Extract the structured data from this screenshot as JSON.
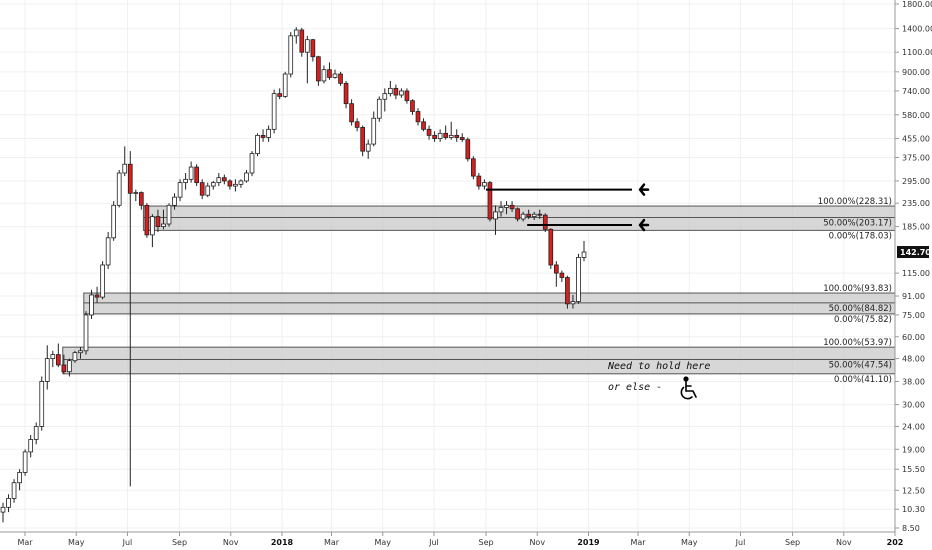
{
  "chart_data": {
    "type": "candlestick",
    "scale": "log",
    "ylim": [
      8.5,
      1800
    ],
    "y_ticks": [
      "1800.00",
      "1400.00",
      "1100.00",
      "900.00",
      "740.00",
      "580.00",
      "455.00",
      "375.00",
      "295.00",
      "235.00",
      "185.00",
      "142.70",
      "115.00",
      "91.00",
      "75.00",
      "60.00",
      "48.00",
      "38.00",
      "30.00",
      "24.00",
      "19.00",
      "15.50",
      "12.50",
      "10.30",
      "8.50"
    ],
    "current_price": "142.70",
    "x_ticks": [
      {
        "label": "Mar",
        "bold": false
      },
      {
        "label": "May",
        "bold": false
      },
      {
        "label": "Jul",
        "bold": false
      },
      {
        "label": "Sep",
        "bold": false
      },
      {
        "label": "Nov",
        "bold": false
      },
      {
        "label": "2018",
        "bold": true
      },
      {
        "label": "Mar",
        "bold": false
      },
      {
        "label": "May",
        "bold": false
      },
      {
        "label": "Jul",
        "bold": false
      },
      {
        "label": "Sep",
        "bold": false
      },
      {
        "label": "Nov",
        "bold": false
      },
      {
        "label": "2019",
        "bold": true
      },
      {
        "label": "Mar",
        "bold": false
      },
      {
        "label": "May",
        "bold": false
      },
      {
        "label": "Jul",
        "bold": false
      },
      {
        "label": "Sep",
        "bold": false
      },
      {
        "label": "Nov",
        "bold": false
      },
      {
        "label": "202",
        "bold": true
      }
    ],
    "zones": [
      {
        "start": "2017-07-20",
        "levels": [
          {
            "value": 228.31,
            "label": "100.00%(228.31)"
          },
          {
            "value": 203.17,
            "label": "50.00%(203.17)"
          },
          {
            "value": 178.03,
            "label": "0.00%(178.03)"
          }
        ]
      },
      {
        "start": "2017-05-10",
        "levels": [
          {
            "value": 93.83,
            "label": "100.00%(93.83)"
          },
          {
            "value": 84.82,
            "label": "50.00%(84.82)"
          },
          {
            "value": 75.82,
            "label": "0.00%(75.82)"
          }
        ]
      },
      {
        "start": "2017-04-15",
        "levels": [
          {
            "value": 53.97,
            "label": "100.00%(53.97)"
          },
          {
            "value": 47.54,
            "label": "50.00%(47.54)"
          },
          {
            "value": 41.1,
            "label": "0.00%(41.10)"
          }
        ]
      }
    ],
    "arrow_lines": [
      {
        "value": 270,
        "from": "2018-09-01"
      },
      {
        "value": 188,
        "from": "2018-10-20"
      }
    ],
    "annotations": [
      "Need to hold here",
      "or else -"
    ],
    "candles": [
      {
        "o": 10.0,
        "h": 11.0,
        "l": 9.0,
        "c": 10.5
      },
      {
        "o": 10.5,
        "h": 12.0,
        "l": 10.0,
        "c": 11.5
      },
      {
        "o": 11.5,
        "h": 14.0,
        "l": 11.0,
        "c": 13.5
      },
      {
        "o": 13.5,
        "h": 15.5,
        "l": 12.5,
        "c": 15.0
      },
      {
        "o": 15.0,
        "h": 19.0,
        "l": 14.5,
        "c": 18.5
      },
      {
        "o": 18.5,
        "h": 22.0,
        "l": 17.5,
        "c": 21.0
      },
      {
        "o": 21.0,
        "h": 25.0,
        "l": 20.0,
        "c": 24.0
      },
      {
        "o": 24.0,
        "h": 40.0,
        "l": 23.0,
        "c": 38.0
      },
      {
        "o": 38.0,
        "h": 55.0,
        "l": 35.0,
        "c": 48.0
      },
      {
        "o": 48.0,
        "h": 52.0,
        "l": 44.0,
        "c": 50.0
      },
      {
        "o": 50.0,
        "h": 56.0,
        "l": 44.0,
        "c": 45.0
      },
      {
        "o": 45.0,
        "h": 50.0,
        "l": 41.0,
        "c": 42.0
      },
      {
        "o": 42.0,
        "h": 48.0,
        "l": 40.0,
        "c": 47.0
      },
      {
        "o": 47.0,
        "h": 52.0,
        "l": 46.0,
        "c": 51.0
      },
      {
        "o": 51.0,
        "h": 54.0,
        "l": 48.0,
        "c": 52.0
      },
      {
        "o": 52.0,
        "h": 78.0,
        "l": 50.0,
        "c": 75.0
      },
      {
        "o": 75.0,
        "h": 97.0,
        "l": 72.0,
        "c": 92.0
      },
      {
        "o": 92.0,
        "h": 100.0,
        "l": 85.0,
        "c": 90.0
      },
      {
        "o": 90.0,
        "h": 130.0,
        "l": 88.0,
        "c": 125.0
      },
      {
        "o": 125.0,
        "h": 175.0,
        "l": 120.0,
        "c": 165.0
      },
      {
        "o": 165.0,
        "h": 240.0,
        "l": 160.0,
        "c": 230.0
      },
      {
        "o": 230.0,
        "h": 330.0,
        "l": 225.0,
        "c": 320.0
      },
      {
        "o": 320.0,
        "h": 420.0,
        "l": 310.0,
        "c": 350.0
      },
      {
        "o": 350.0,
        "h": 400.0,
        "l": 13.0,
        "c": 260.0
      },
      {
        "o": 260.0,
        "h": 270.0,
        "l": 240.0,
        "c": 262.0
      },
      {
        "o": 262.0,
        "h": 265.0,
        "l": 220.0,
        "c": 230.0
      },
      {
        "o": 230.0,
        "h": 235.0,
        "l": 165.0,
        "c": 170.0
      },
      {
        "o": 170.0,
        "h": 210.0,
        "l": 150.0,
        "c": 205.0
      },
      {
        "o": 205.0,
        "h": 220.0,
        "l": 175.0,
        "c": 185.0
      },
      {
        "o": 185.0,
        "h": 220.0,
        "l": 180.0,
        "c": 190.0
      },
      {
        "o": 190.0,
        "h": 235.0,
        "l": 185.0,
        "c": 230.0
      },
      {
        "o": 230.0,
        "h": 260.0,
        "l": 220.0,
        "c": 250.0
      },
      {
        "o": 250.0,
        "h": 300.0,
        "l": 240.0,
        "c": 290.0
      },
      {
        "o": 290.0,
        "h": 320.0,
        "l": 270.0,
        "c": 300.0
      },
      {
        "o": 300.0,
        "h": 360.0,
        "l": 290.0,
        "c": 340.0
      },
      {
        "o": 340.0,
        "h": 350.0,
        "l": 280.0,
        "c": 290.0
      },
      {
        "o": 290.0,
        "h": 300.0,
        "l": 245.0,
        "c": 255.0
      },
      {
        "o": 255.0,
        "h": 290.0,
        "l": 250.0,
        "c": 280.0
      },
      {
        "o": 280.0,
        "h": 295.0,
        "l": 270.0,
        "c": 290.0
      },
      {
        "o": 290.0,
        "h": 320.0,
        "l": 280.0,
        "c": 305.0
      },
      {
        "o": 305.0,
        "h": 315.0,
        "l": 285.0,
        "c": 295.0
      },
      {
        "o": 295.0,
        "h": 300.0,
        "l": 270.0,
        "c": 280.0
      },
      {
        "o": 280.0,
        "h": 300.0,
        "l": 265.0,
        "c": 285.0
      },
      {
        "o": 285.0,
        "h": 300.0,
        "l": 275.0,
        "c": 295.0
      },
      {
        "o": 295.0,
        "h": 330.0,
        "l": 290.0,
        "c": 320.0
      },
      {
        "o": 320.0,
        "h": 400.0,
        "l": 310.0,
        "c": 390.0
      },
      {
        "o": 390.0,
        "h": 480.0,
        "l": 380.0,
        "c": 470.0
      },
      {
        "o": 470.0,
        "h": 500.0,
        "l": 440.0,
        "c": 460.0
      },
      {
        "o": 460.0,
        "h": 520.0,
        "l": 440.0,
        "c": 500.0
      },
      {
        "o": 500.0,
        "h": 750.0,
        "l": 480.0,
        "c": 720.0
      },
      {
        "o": 720.0,
        "h": 760.0,
        "l": 680.0,
        "c": 700.0
      },
      {
        "o": 700.0,
        "h": 900.0,
        "l": 690.0,
        "c": 880.0
      },
      {
        "o": 880.0,
        "h": 1350.0,
        "l": 850.0,
        "c": 1300.0
      },
      {
        "o": 1300.0,
        "h": 1420.0,
        "l": 1200.0,
        "c": 1380.0
      },
      {
        "o": 1380.0,
        "h": 1410.0,
        "l": 1050.0,
        "c": 1100.0
      },
      {
        "o": 1100.0,
        "h": 1300.0,
        "l": 800.0,
        "c": 1250.0
      },
      {
        "o": 1250.0,
        "h": 1260.0,
        "l": 1000.0,
        "c": 1050.0
      },
      {
        "o": 1050.0,
        "h": 1060.0,
        "l": 780.0,
        "c": 820.0
      },
      {
        "o": 820.0,
        "h": 960.0,
        "l": 800.0,
        "c": 920.0
      },
      {
        "o": 920.0,
        "h": 990.0,
        "l": 830.0,
        "c": 850.0
      },
      {
        "o": 850.0,
        "h": 920.0,
        "l": 840.0,
        "c": 880.0
      },
      {
        "o": 880.0,
        "h": 900.0,
        "l": 780.0,
        "c": 800.0
      },
      {
        "o": 800.0,
        "h": 820.0,
        "l": 620.0,
        "c": 650.0
      },
      {
        "o": 650.0,
        "h": 680.0,
        "l": 520.0,
        "c": 540.0
      },
      {
        "o": 540.0,
        "h": 560.0,
        "l": 490.0,
        "c": 510.0
      },
      {
        "o": 510.0,
        "h": 520.0,
        "l": 380.0,
        "c": 400.0
      },
      {
        "o": 400.0,
        "h": 450.0,
        "l": 370.0,
        "c": 430.0
      },
      {
        "o": 430.0,
        "h": 600.0,
        "l": 420.0,
        "c": 560.0
      },
      {
        "o": 560.0,
        "h": 700.0,
        "l": 540.0,
        "c": 680.0
      },
      {
        "o": 680.0,
        "h": 760.0,
        "l": 600.0,
        "c": 720.0
      },
      {
        "o": 720.0,
        "h": 820.0,
        "l": 700.0,
        "c": 760.0
      },
      {
        "o": 760.0,
        "h": 790.0,
        "l": 680.0,
        "c": 710.0
      },
      {
        "o": 710.0,
        "h": 760.0,
        "l": 690.0,
        "c": 740.0
      },
      {
        "o": 740.0,
        "h": 760.0,
        "l": 650.0,
        "c": 670.0
      },
      {
        "o": 670.0,
        "h": 680.0,
        "l": 580.0,
        "c": 600.0
      },
      {
        "o": 600.0,
        "h": 620.0,
        "l": 520.0,
        "c": 540.0
      },
      {
        "o": 540.0,
        "h": 560.0,
        "l": 490.0,
        "c": 500.0
      },
      {
        "o": 500.0,
        "h": 520.0,
        "l": 450.0,
        "c": 470.0
      },
      {
        "o": 470.0,
        "h": 490.0,
        "l": 440.0,
        "c": 455.0
      },
      {
        "o": 455.0,
        "h": 500.0,
        "l": 440.0,
        "c": 480.0
      },
      {
        "o": 480.0,
        "h": 520.0,
        "l": 450.0,
        "c": 460.0
      },
      {
        "o": 460.0,
        "h": 540.0,
        "l": 450.0,
        "c": 470.0
      },
      {
        "o": 470.0,
        "h": 500.0,
        "l": 440.0,
        "c": 460.0
      },
      {
        "o": 460.0,
        "h": 480.0,
        "l": 440.0,
        "c": 450.0
      },
      {
        "o": 450.0,
        "h": 460.0,
        "l": 360.0,
        "c": 370.0
      },
      {
        "o": 370.0,
        "h": 380.0,
        "l": 300.0,
        "c": 310.0
      },
      {
        "o": 310.0,
        "h": 320.0,
        "l": 270.0,
        "c": 280.0
      },
      {
        "o": 280.0,
        "h": 300.0,
        "l": 270.0,
        "c": 290.0
      },
      {
        "o": 290.0,
        "h": 295.0,
        "l": 195.0,
        "c": 200.0
      },
      {
        "o": 200.0,
        "h": 230.0,
        "l": 170.0,
        "c": 215.0
      },
      {
        "o": 215.0,
        "h": 240.0,
        "l": 205.0,
        "c": 225.0
      },
      {
        "o": 225.0,
        "h": 240.0,
        "l": 210.0,
        "c": 230.0
      },
      {
        "o": 230.0,
        "h": 240.0,
        "l": 215.0,
        "c": 222.0
      },
      {
        "o": 222.0,
        "h": 225.0,
        "l": 195.0,
        "c": 200.0
      },
      {
        "o": 200.0,
        "h": 215.0,
        "l": 195.0,
        "c": 210.0
      },
      {
        "o": 210.0,
        "h": 220.0,
        "l": 200.0,
        "c": 205.0
      },
      {
        "o": 205.0,
        "h": 215.0,
        "l": 198.0,
        "c": 210.0
      },
      {
        "o": 210.0,
        "h": 220.0,
        "l": 200.0,
        "c": 208.0
      },
      {
        "o": 208.0,
        "h": 212.0,
        "l": 175.0,
        "c": 180.0
      },
      {
        "o": 180.0,
        "h": 182.0,
        "l": 120.0,
        "c": 125.0
      },
      {
        "o": 125.0,
        "h": 130.0,
        "l": 100.0,
        "c": 115.0
      },
      {
        "o": 115.0,
        "h": 118.0,
        "l": 105.0,
        "c": 110.0
      },
      {
        "o": 110.0,
        "h": 112.0,
        "l": 80.0,
        "c": 84.0
      },
      {
        "o": 84.0,
        "h": 92.0,
        "l": 80.0,
        "c": 86.0
      },
      {
        "o": 86.0,
        "h": 140.0,
        "l": 84.0,
        "c": 135.0
      },
      {
        "o": 135.0,
        "h": 160.0,
        "l": 130.0,
        "c": 142.7
      }
    ]
  }
}
